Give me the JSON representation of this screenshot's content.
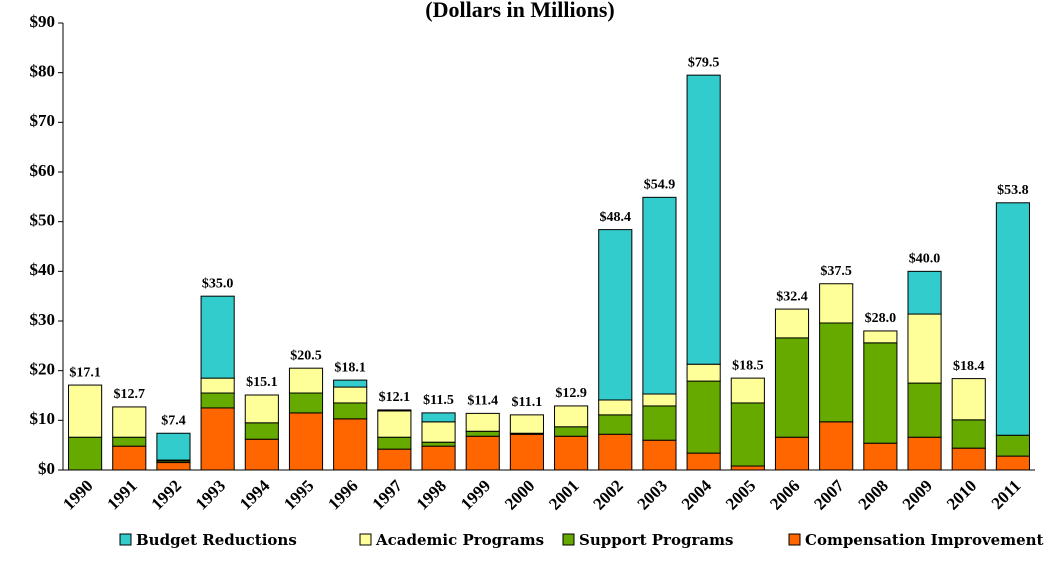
{
  "chart_data": {
    "type": "stacked_bar",
    "title": "(Dollars in Millions)",
    "categories": [
      "1990",
      "1991",
      "1992",
      "1993",
      "1994",
      "1995",
      "1996",
      "1997",
      "1998",
      "1999",
      "2000",
      "2001",
      "2002",
      "2003",
      "2004",
      "2005",
      "2006",
      "2007",
      "2008",
      "2009",
      "2010",
      "2011"
    ],
    "series": [
      {
        "name": "Budget Reductions",
        "color": "#33CCCC",
        "values": [
          0,
          0,
          5.4,
          16.5,
          0,
          0,
          1.4,
          0.2,
          1.8,
          0,
          0,
          0,
          34.3,
          39.6,
          58.2,
          0,
          0,
          0,
          0,
          8.6,
          0,
          46.8
        ]
      },
      {
        "name": "Academic Programs",
        "color": "#FFFF99",
        "values": [
          10.5,
          6.1,
          0.2,
          3.0,
          5.6,
          5.0,
          3.2,
          5.3,
          4.1,
          3.6,
          3.7,
          4.2,
          3.0,
          2.4,
          3.4,
          5.0,
          5.8,
          7.9,
          2.4,
          13.9,
          8.3,
          0
        ]
      },
      {
        "name": "Support Programs",
        "color": "#66AA00",
        "values": [
          6.6,
          1.8,
          0.3,
          3.0,
          3.3,
          4.0,
          3.2,
          2.4,
          0.8,
          1.0,
          0.2,
          1.9,
          3.9,
          6.9,
          14.5,
          12.7,
          20.0,
          19.9,
          20.2,
          10.9,
          5.7,
          4.2
        ]
      },
      {
        "name": "Compensation Improvement",
        "color": "#FF6600",
        "values": [
          0,
          4.8,
          1.5,
          12.5,
          6.2,
          11.5,
          10.3,
          4.2,
          4.8,
          6.8,
          7.2,
          6.8,
          7.2,
          6.0,
          3.4,
          0.8,
          6.6,
          9.7,
          5.4,
          6.6,
          4.4,
          2.8
        ]
      }
    ],
    "totals": {
      "values": [
        17.1,
        12.7,
        7.4,
        35.0,
        15.1,
        20.5,
        18.1,
        12.1,
        11.5,
        11.4,
        11.1,
        12.9,
        48.4,
        54.9,
        79.5,
        18.5,
        32.4,
        37.5,
        28.0,
        40.0,
        18.4,
        53.8
      ],
      "value_labels": [
        "$17.1",
        "$12.7",
        "$7.4",
        "$35.0",
        "$15.1",
        "$20.5",
        "$18.1",
        "$12.1",
        "$11.5",
        "$11.4",
        "$11.1",
        "$12.9",
        "$48.4",
        "$54.9",
        "$79.5",
        "$18.5",
        "$32.4",
        "$37.5",
        "$28.0",
        "$40.0",
        "$18.4",
        "$53.8"
      ]
    },
    "ylim": [
      0,
      90
    ],
    "yticks": [
      {
        "value": 0,
        "label": "$0"
      },
      {
        "value": 10,
        "label": "$10"
      },
      {
        "value": 20,
        "label": "$20"
      },
      {
        "value": 30,
        "label": "$30"
      },
      {
        "value": 40,
        "label": "$40"
      },
      {
        "value": 50,
        "label": "$50"
      },
      {
        "value": 60,
        "label": "$60"
      },
      {
        "value": 70,
        "label": "$70"
      },
      {
        "value": 80,
        "label": "$80"
      },
      {
        "value": 90,
        "label": "$90"
      }
    ],
    "grid": false,
    "legend": "bottom"
  }
}
